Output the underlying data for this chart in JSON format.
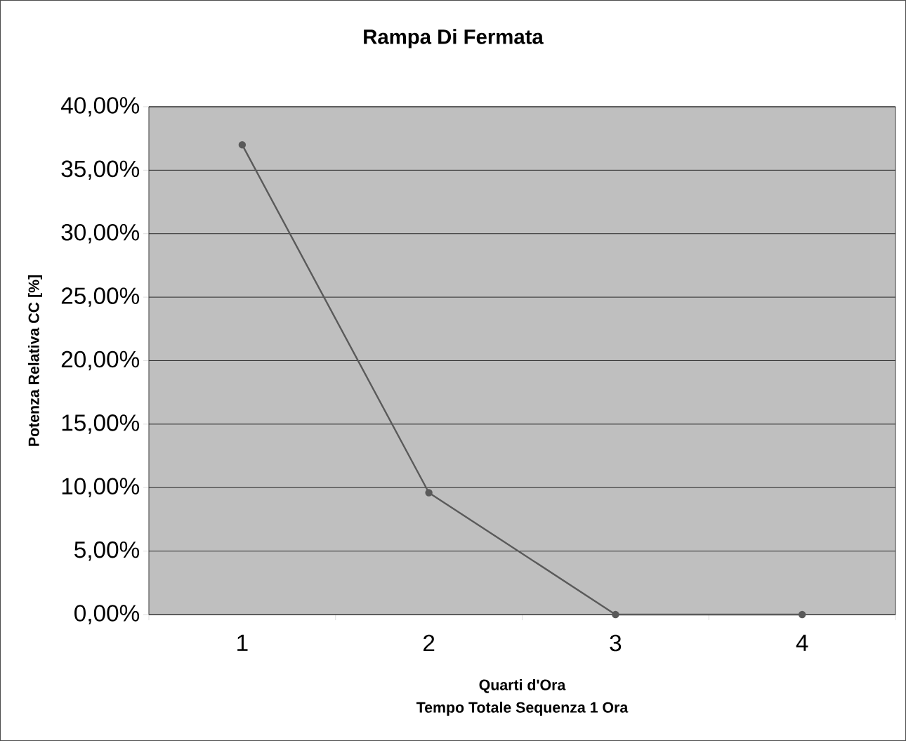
{
  "chart_data": {
    "type": "line",
    "title": "Rampa Di Fermata",
    "xlabel": "Quarti d'Ora\nTempo Totale Sequenza 1 Ora",
    "ylabel": "Potenza Relativa CC [%]",
    "categories": [
      "1",
      "2",
      "3",
      "4"
    ],
    "series": [
      {
        "color": "#5a5a5a",
        "values": [
          37,
          9.6,
          0,
          0
        ]
      }
    ],
    "ylim": [
      0,
      40
    ],
    "yticks": [
      {
        "value": 0,
        "label": "0,00%"
      },
      {
        "value": 5,
        "label": "5,00%"
      },
      {
        "value": 10,
        "label": "10,00%"
      },
      {
        "value": 15,
        "label": "15,00%"
      },
      {
        "value": 20,
        "label": "20,00%"
      },
      {
        "value": 25,
        "label": "25,00%"
      },
      {
        "value": 30,
        "label": "30,00%"
      },
      {
        "value": 35,
        "label": "35,00%"
      },
      {
        "value": 40,
        "label": "40,00%"
      }
    ],
    "grid": "y",
    "marker": "circle",
    "line_style": "solid"
  }
}
